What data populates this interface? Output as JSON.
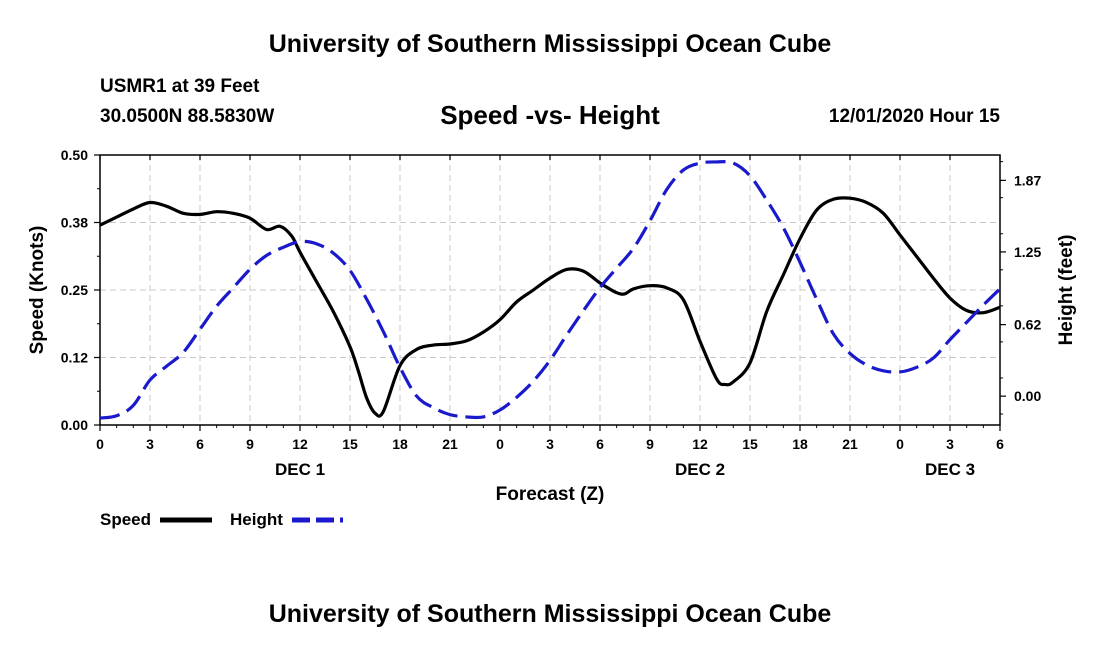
{
  "header": {
    "title": "University of Southern Mississippi Ocean Cube",
    "station": "USMR1 at 39 Feet",
    "coords": "30.0500N 88.5830W",
    "chart_title": "Speed -vs- Height",
    "datetime": "12/01/2020 Hour 15"
  },
  "footer": {
    "title": "University of Southern Mississippi Ocean Cube"
  },
  "colors": {
    "speed": "#000000",
    "height": "#1a1acc",
    "grid": "#c8c8c8"
  },
  "chart_data": {
    "type": "line",
    "title": "Speed -vs- Height",
    "xlabel": "Forecast (Z)",
    "ylabel": "Speed (Knots)",
    "y2label": "Height (feet)",
    "x_range": [
      0,
      54
    ],
    "x_unit": "hours from 00Z Dec 1",
    "ylim": [
      0,
      0.5
    ],
    "y2lim": [
      -0.25,
      2.09
    ],
    "grid": true,
    "legend_position": "bottom-left",
    "x_ticks": [
      {
        "x": 0,
        "label": "0"
      },
      {
        "x": 3,
        "label": "3"
      },
      {
        "x": 6,
        "label": "6"
      },
      {
        "x": 9,
        "label": "9"
      },
      {
        "x": 12,
        "label": "12"
      },
      {
        "x": 15,
        "label": "15"
      },
      {
        "x": 18,
        "label": "18"
      },
      {
        "x": 21,
        "label": "21"
      },
      {
        "x": 24,
        "label": "0"
      },
      {
        "x": 27,
        "label": "3"
      },
      {
        "x": 30,
        "label": "6"
      },
      {
        "x": 33,
        "label": "9"
      },
      {
        "x": 36,
        "label": "12"
      },
      {
        "x": 39,
        "label": "15"
      },
      {
        "x": 42,
        "label": "18"
      },
      {
        "x": 45,
        "label": "21"
      },
      {
        "x": 48,
        "label": "0"
      },
      {
        "x": 51,
        "label": "3"
      },
      {
        "x": 54,
        "label": "6"
      }
    ],
    "day_labels": [
      {
        "x": 12,
        "label": "DEC 1"
      },
      {
        "x": 36,
        "label": "DEC 2"
      },
      {
        "x": 51,
        "label": "DEC 3"
      }
    ],
    "y_ticks": [
      {
        "value": 0.0,
        "label": "0.00"
      },
      {
        "value": 0.125,
        "label": "0.12"
      },
      {
        "value": 0.25,
        "label": "0.25"
      },
      {
        "value": 0.375,
        "label": "0.38"
      },
      {
        "value": 0.5,
        "label": "0.50"
      }
    ],
    "y2_ticks": [
      {
        "value": 0.0,
        "label": "0.00"
      },
      {
        "value": 0.62,
        "label": "0.62"
      },
      {
        "value": 1.25,
        "label": "1.25"
      },
      {
        "value": 1.87,
        "label": "1.87"
      }
    ],
    "series": [
      {
        "name": "Speed",
        "axis": "left",
        "style": "solid",
        "x": [
          0,
          1,
          2,
          3,
          4,
          5,
          6,
          7,
          8,
          9,
          10,
          10.8,
          11.5,
          12,
          13,
          14,
          15,
          15.5,
          16,
          16.5,
          17,
          18,
          19,
          20,
          21,
          22,
          23,
          24,
          25,
          26,
          27,
          28,
          29,
          30,
          31,
          31.5,
          32,
          33,
          34,
          35,
          36,
          37,
          37.5,
          38,
          39,
          40,
          41,
          42,
          43,
          44,
          45,
          46,
          47,
          48,
          49,
          50,
          51,
          52,
          53,
          54
        ],
        "values": [
          0.37,
          0.385,
          0.4,
          0.412,
          0.405,
          0.392,
          0.39,
          0.395,
          0.392,
          0.383,
          0.362,
          0.368,
          0.35,
          0.32,
          0.265,
          0.21,
          0.145,
          0.1,
          0.05,
          0.022,
          0.025,
          0.11,
          0.14,
          0.148,
          0.15,
          0.156,
          0.172,
          0.195,
          0.228,
          0.25,
          0.272,
          0.288,
          0.285,
          0.263,
          0.245,
          0.243,
          0.252,
          0.258,
          0.254,
          0.232,
          0.155,
          0.085,
          0.075,
          0.08,
          0.115,
          0.21,
          0.278,
          0.345,
          0.398,
          0.418,
          0.42,
          0.412,
          0.392,
          0.352,
          0.312,
          0.272,
          0.235,
          0.212,
          0.208,
          0.218
        ]
      },
      {
        "name": "Height",
        "axis": "right",
        "style": "dashed",
        "x": [
          0,
          1,
          2,
          3,
          4,
          5,
          6,
          7,
          8,
          9,
          10,
          11,
          12,
          13,
          14,
          15,
          16,
          17,
          18,
          19,
          20,
          21,
          22,
          23,
          24,
          25,
          26,
          27,
          28,
          29,
          30,
          31,
          32,
          33,
          34,
          35,
          36,
          37,
          38,
          39,
          40,
          41,
          42,
          43,
          44,
          45,
          46,
          47,
          48,
          49,
          50,
          51,
          52,
          53,
          54
        ],
        "values": [
          -0.19,
          -0.17,
          -0.08,
          0.14,
          0.26,
          0.38,
          0.58,
          0.78,
          0.94,
          1.1,
          1.22,
          1.29,
          1.34,
          1.32,
          1.24,
          1.09,
          0.84,
          0.56,
          0.25,
          0.0,
          -0.1,
          -0.16,
          -0.18,
          -0.18,
          -0.12,
          -0.01,
          0.13,
          0.31,
          0.53,
          0.74,
          0.94,
          1.11,
          1.28,
          1.52,
          1.79,
          1.96,
          2.02,
          2.03,
          2.02,
          1.91,
          1.7,
          1.46,
          1.16,
          0.84,
          0.54,
          0.37,
          0.27,
          0.22,
          0.21,
          0.25,
          0.33,
          0.49,
          0.64,
          0.79,
          0.93
        ]
      }
    ],
    "legend": [
      {
        "name": "Speed",
        "style": "solid"
      },
      {
        "name": "Height",
        "style": "dashed"
      }
    ]
  }
}
